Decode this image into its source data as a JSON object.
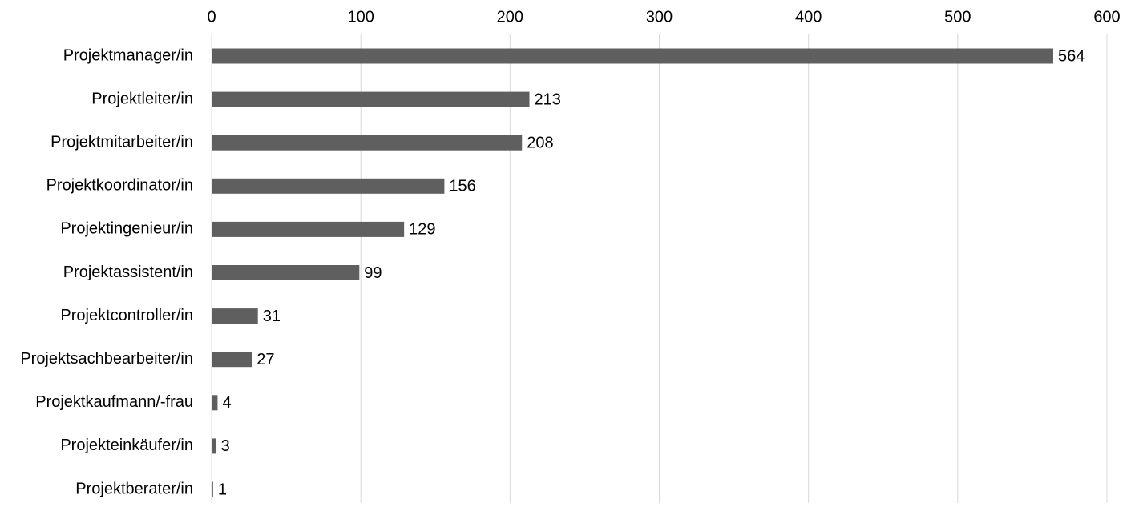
{
  "chart_data": {
    "type": "bar",
    "orientation": "horizontal",
    "title": "",
    "xlabel": "",
    "ylabel": "",
    "categories": [
      "Projektmanager/in",
      "Projektleiter/in",
      "Projektmitarbeiter/in",
      "Projektkoordinator/in",
      "Projektingenieur/in",
      "Projektassistent/in",
      "Projektcontroller/in",
      "Projektsachbearbeiter/in",
      "Projektkaufmann/-frau",
      "Projekteinkäufer/in",
      "Projektberater/in"
    ],
    "values": [
      564,
      213,
      208,
      156,
      129,
      99,
      31,
      27,
      4,
      3,
      1
    ],
    "xlim": [
      0,
      600
    ],
    "xticks": [
      0,
      100,
      200,
      300,
      400,
      500,
      600
    ],
    "x_axis_position": "top",
    "grid": true,
    "legend": "none",
    "data_labels": true,
    "bar_color": "#5f5f5f",
    "grid_color": "#d9d9d9"
  }
}
